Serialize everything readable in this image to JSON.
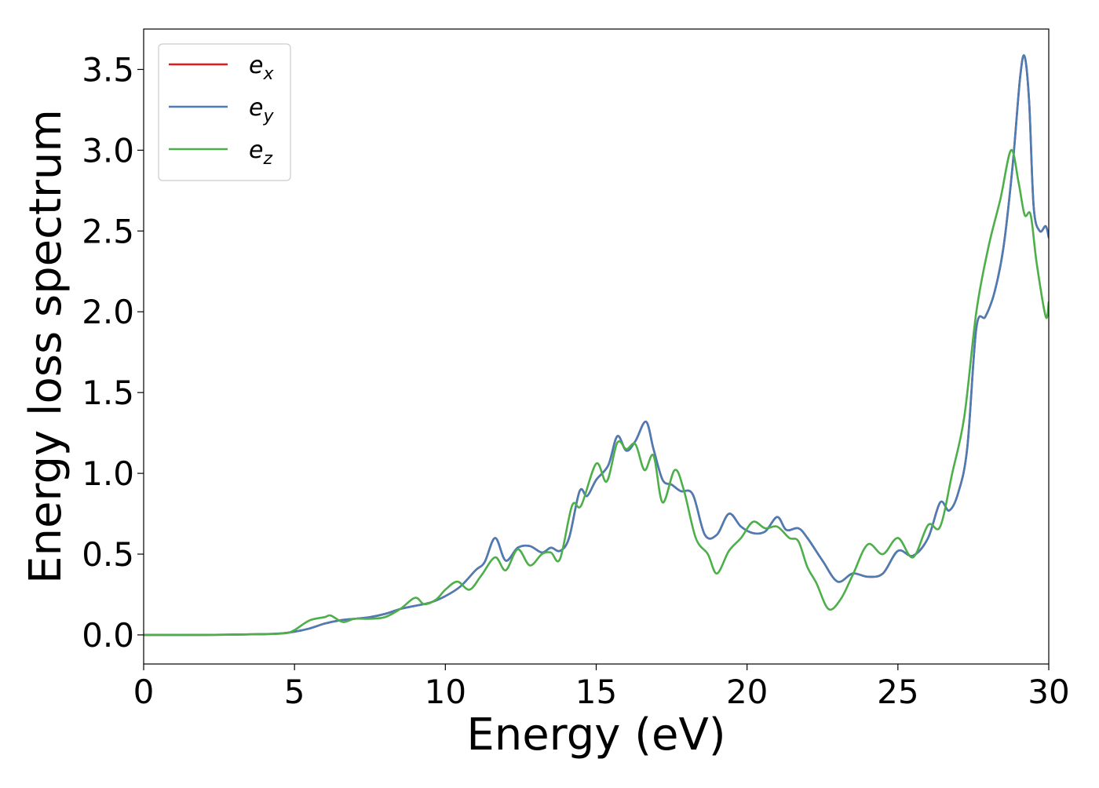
{
  "chart_data": {
    "type": "line",
    "xlabel": "Energy (eV)",
    "ylabel": "Energy loss spectrum",
    "xlim": [
      0,
      30
    ],
    "ylim": [
      -0.18,
      3.75
    ],
    "xticks": [
      0,
      5,
      10,
      15,
      20,
      25,
      30
    ],
    "xtick_labels": [
      "0",
      "5",
      "10",
      "15",
      "20",
      "25",
      "30"
    ],
    "yticks": [
      0.0,
      0.5,
      1.0,
      1.5,
      2.0,
      2.5,
      3.0,
      3.5
    ],
    "ytick_labels": [
      "0.0",
      "0.5",
      "1.0",
      "1.5",
      "2.0",
      "2.5",
      "3.0",
      "3.5"
    ],
    "grid": false,
    "legend_position": "upper-left",
    "series": [
      {
        "name": "e_x",
        "label_main": "e",
        "label_sub": "x",
        "color": "#e41a1c",
        "x": [
          0,
          2,
          4,
          4.6,
          5,
          5.5,
          6,
          6.5,
          7,
          7.5,
          8,
          8.5,
          9,
          9.5,
          10,
          10.5,
          11,
          11.3,
          11.65,
          12,
          12.4,
          12.8,
          13.2,
          13.5,
          13.8,
          14.1,
          14.45,
          14.7,
          15,
          15.4,
          15.7,
          16,
          16.3,
          16.65,
          16.9,
          17.2,
          17.5,
          17.8,
          18.2,
          18.6,
          19,
          19.4,
          19.8,
          20.2,
          20.6,
          21,
          21.3,
          21.7,
          22,
          22.5,
          23,
          23.5,
          24,
          24.5,
          25,
          25.5,
          26,
          26.4,
          26.7,
          27,
          27.3,
          27.6,
          27.9,
          28.2,
          28.5,
          28.8,
          29.05,
          29.2,
          29.35,
          29.5,
          29.7,
          29.9,
          30
        ],
        "y": [
          0,
          0,
          0.005,
          0.01,
          0.02,
          0.04,
          0.07,
          0.09,
          0.1,
          0.11,
          0.13,
          0.16,
          0.18,
          0.2,
          0.24,
          0.3,
          0.4,
          0.45,
          0.6,
          0.46,
          0.54,
          0.55,
          0.51,
          0.54,
          0.52,
          0.6,
          0.89,
          0.86,
          0.96,
          1.05,
          1.23,
          1.14,
          1.2,
          1.32,
          1.15,
          0.96,
          0.93,
          0.89,
          0.87,
          0.62,
          0.62,
          0.75,
          0.67,
          0.63,
          0.64,
          0.73,
          0.65,
          0.66,
          0.6,
          0.46,
          0.33,
          0.38,
          0.36,
          0.38,
          0.52,
          0.49,
          0.6,
          0.82,
          0.77,
          0.88,
          1.16,
          1.9,
          1.97,
          2.12,
          2.4,
          2.9,
          3.45,
          3.58,
          3.3,
          2.65,
          2.5,
          2.53,
          2.46
        ]
      },
      {
        "name": "e_y",
        "label_main": "e",
        "label_sub": "y",
        "color": "#4a7db5",
        "x": [
          0,
          2,
          4,
          4.6,
          5,
          5.5,
          6,
          6.5,
          7,
          7.5,
          8,
          8.5,
          9,
          9.5,
          10,
          10.5,
          11,
          11.3,
          11.65,
          12,
          12.4,
          12.8,
          13.2,
          13.5,
          13.8,
          14.1,
          14.45,
          14.7,
          15,
          15.4,
          15.7,
          16,
          16.3,
          16.65,
          16.9,
          17.2,
          17.5,
          17.8,
          18.2,
          18.6,
          19,
          19.4,
          19.8,
          20.2,
          20.6,
          21,
          21.3,
          21.7,
          22,
          22.5,
          23,
          23.5,
          24,
          24.5,
          25,
          25.5,
          26,
          26.4,
          26.7,
          27,
          27.3,
          27.6,
          27.9,
          28.2,
          28.5,
          28.8,
          29.05,
          29.2,
          29.35,
          29.5,
          29.7,
          29.9,
          30
        ],
        "y": [
          0,
          0,
          0.005,
          0.01,
          0.02,
          0.04,
          0.07,
          0.09,
          0.1,
          0.11,
          0.13,
          0.16,
          0.18,
          0.2,
          0.24,
          0.3,
          0.4,
          0.45,
          0.6,
          0.46,
          0.54,
          0.55,
          0.51,
          0.54,
          0.52,
          0.6,
          0.89,
          0.86,
          0.96,
          1.05,
          1.23,
          1.14,
          1.2,
          1.32,
          1.15,
          0.96,
          0.93,
          0.89,
          0.87,
          0.62,
          0.62,
          0.75,
          0.67,
          0.63,
          0.64,
          0.73,
          0.65,
          0.66,
          0.6,
          0.46,
          0.33,
          0.38,
          0.36,
          0.38,
          0.52,
          0.49,
          0.6,
          0.82,
          0.77,
          0.88,
          1.16,
          1.9,
          1.97,
          2.12,
          2.4,
          2.9,
          3.45,
          3.58,
          3.3,
          2.65,
          2.5,
          2.53,
          2.46
        ]
      },
      {
        "name": "e_z",
        "label_main": "e",
        "label_sub": "z",
        "color": "#4daf4a",
        "x": [
          0,
          2,
          4,
          4.7,
          5,
          5.5,
          6,
          6.2,
          6.6,
          7,
          7.5,
          8,
          8.5,
          9,
          9.3,
          9.7,
          10,
          10.4,
          10.8,
          11.2,
          11.65,
          12,
          12.4,
          12.8,
          13.2,
          13.5,
          13.8,
          14.2,
          14.5,
          15,
          15.35,
          15.7,
          16,
          16.3,
          16.6,
          16.9,
          17.2,
          17.6,
          17.9,
          18.3,
          18.7,
          19,
          19.4,
          19.8,
          20.2,
          20.6,
          21,
          21.4,
          21.7,
          22,
          22.3,
          22.7,
          23.1,
          23.5,
          24,
          24.5,
          25,
          25.5,
          26,
          26.4,
          26.8,
          27.2,
          27.6,
          28,
          28.4,
          28.75,
          29,
          29.2,
          29.4,
          29.6,
          29.9,
          30
        ],
        "y": [
          0,
          0,
          0.005,
          0.01,
          0.03,
          0.09,
          0.11,
          0.12,
          0.08,
          0.1,
          0.1,
          0.11,
          0.16,
          0.23,
          0.19,
          0.22,
          0.28,
          0.33,
          0.28,
          0.37,
          0.48,
          0.4,
          0.53,
          0.43,
          0.5,
          0.51,
          0.47,
          0.8,
          0.8,
          1.06,
          0.95,
          1.19,
          1.15,
          1.18,
          1.02,
          1.11,
          0.82,
          1.02,
          0.9,
          0.6,
          0.5,
          0.38,
          0.52,
          0.6,
          0.7,
          0.66,
          0.67,
          0.6,
          0.58,
          0.42,
          0.32,
          0.16,
          0.22,
          0.37,
          0.56,
          0.5,
          0.6,
          0.48,
          0.68,
          0.67,
          1.0,
          1.35,
          2.0,
          2.4,
          2.7,
          3.0,
          2.8,
          2.6,
          2.6,
          2.3,
          1.97,
          2.06
        ]
      }
    ]
  }
}
